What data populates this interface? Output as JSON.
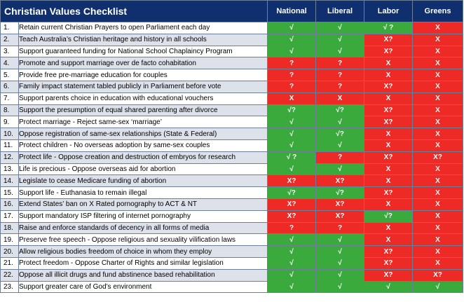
{
  "title": "Christian Values Checklist",
  "parties": [
    "National",
    "Liberal",
    "Labor",
    "Greens"
  ],
  "colors": {
    "header_bg": "#0f2f6e",
    "yes_green": "#3aaa3c",
    "no_red": "#ed2a25",
    "stripe": "#dde1ea"
  },
  "rows": [
    {
      "num": "1.",
      "text": "Retain current Christian Prayers to open Parliament each day",
      "marks": [
        "√",
        "√",
        "√ ?",
        "X"
      ]
    },
    {
      "num": "2.",
      "text": "Teach Australia’s Christian heritage and history in all schools",
      "marks": [
        "√",
        "√",
        "X?",
        "X"
      ]
    },
    {
      "num": "3.",
      "text": "Support guaranteed funding for National School Chaplaincy Program",
      "marks": [
        "√",
        "√",
        "X?",
        "X"
      ]
    },
    {
      "num": "4.",
      "text": "Promote and support marriage over de facto cohabitation",
      "marks": [
        "?",
        "?",
        "X",
        "X"
      ]
    },
    {
      "num": "5.",
      "text": "Provide free pre-marriage education for couples",
      "marks": [
        "?",
        "?",
        "X",
        "X"
      ]
    },
    {
      "num": "6.",
      "text": "Family impact statement tabled publicly in Parliament before vote",
      "marks": [
        "?",
        "?",
        "X?",
        "X"
      ]
    },
    {
      "num": "7.",
      "text": "Support parents choice in education with educational vouchers",
      "marks": [
        "X",
        "X",
        "X",
        "X"
      ]
    },
    {
      "num": "8.",
      "text": "Support the presumption of equal shared parenting after divorce",
      "marks": [
        "√?",
        "√?",
        "X?",
        "X"
      ]
    },
    {
      "num": "9.",
      "text": "Protect marriage - Reject same-sex ‘marriage’",
      "marks": [
        "√",
        "√",
        "X?",
        "X"
      ]
    },
    {
      "num": "10.",
      "text": "Oppose registration of same-sex relationships (State & Federal)",
      "marks": [
        "√",
        "√?",
        "X",
        "X"
      ]
    },
    {
      "num": "11.",
      "text": "Protect children - No overseas adoption by same-sex couples",
      "marks": [
        "√",
        "√",
        "X",
        "X"
      ]
    },
    {
      "num": "12.",
      "text": "Protect life - Oppose creation and destruction of embryos for research",
      "marks": [
        "√ ?",
        "?",
        "X?",
        "X?"
      ]
    },
    {
      "num": "13.",
      "text": "Life is precious - Oppose overseas aid for abortion",
      "marks": [
        "√",
        "√",
        "X",
        "X"
      ]
    },
    {
      "num": "14.",
      "text": "Legislate to cease Medicare funding of abortion",
      "marks": [
        "X?",
        "X?",
        "X",
        "X"
      ]
    },
    {
      "num": "15.",
      "text": "Support life - Euthanasia to remain illegal",
      "marks": [
        "√?",
        "√?",
        "X?",
        "X"
      ]
    },
    {
      "num": "16.",
      "text": "Extend States’ ban on X Rated pornography to ACT & NT",
      "marks": [
        "X?",
        "X?",
        "X",
        "X"
      ]
    },
    {
      "num": "17.",
      "text": "Support mandatory ISP filtering of internet pornography",
      "marks": [
        "X?",
        "X?",
        "√?",
        "X"
      ]
    },
    {
      "num": "18.",
      "text": "Raise and enforce standards of decency in all forms of media",
      "marks": [
        "?",
        "?",
        "X",
        "X"
      ]
    },
    {
      "num": "19.",
      "text": "Preserve free speech - Oppose religious and sexuality vilification laws",
      "marks": [
        "√",
        "√",
        "X",
        "X"
      ]
    },
    {
      "num": "20.",
      "text": "Allow religious bodies freedom of choice in whom they employ",
      "marks": [
        "√",
        "√",
        "X?",
        "X"
      ]
    },
    {
      "num": "21.",
      "text": "Protect freedom - Oppose Charter of Rights and similar legislation",
      "marks": [
        "√",
        "√",
        "X?",
        "X"
      ]
    },
    {
      "num": "22.",
      "text": "Oppose all illicit drugs and fund abstinence based rehabilitation",
      "marks": [
        "√",
        "√",
        "X?",
        "X?"
      ]
    },
    {
      "num": "23.",
      "text": "Support greater care of God’s environment",
      "marks": [
        "√",
        "√",
        "√",
        "√"
      ]
    }
  ]
}
